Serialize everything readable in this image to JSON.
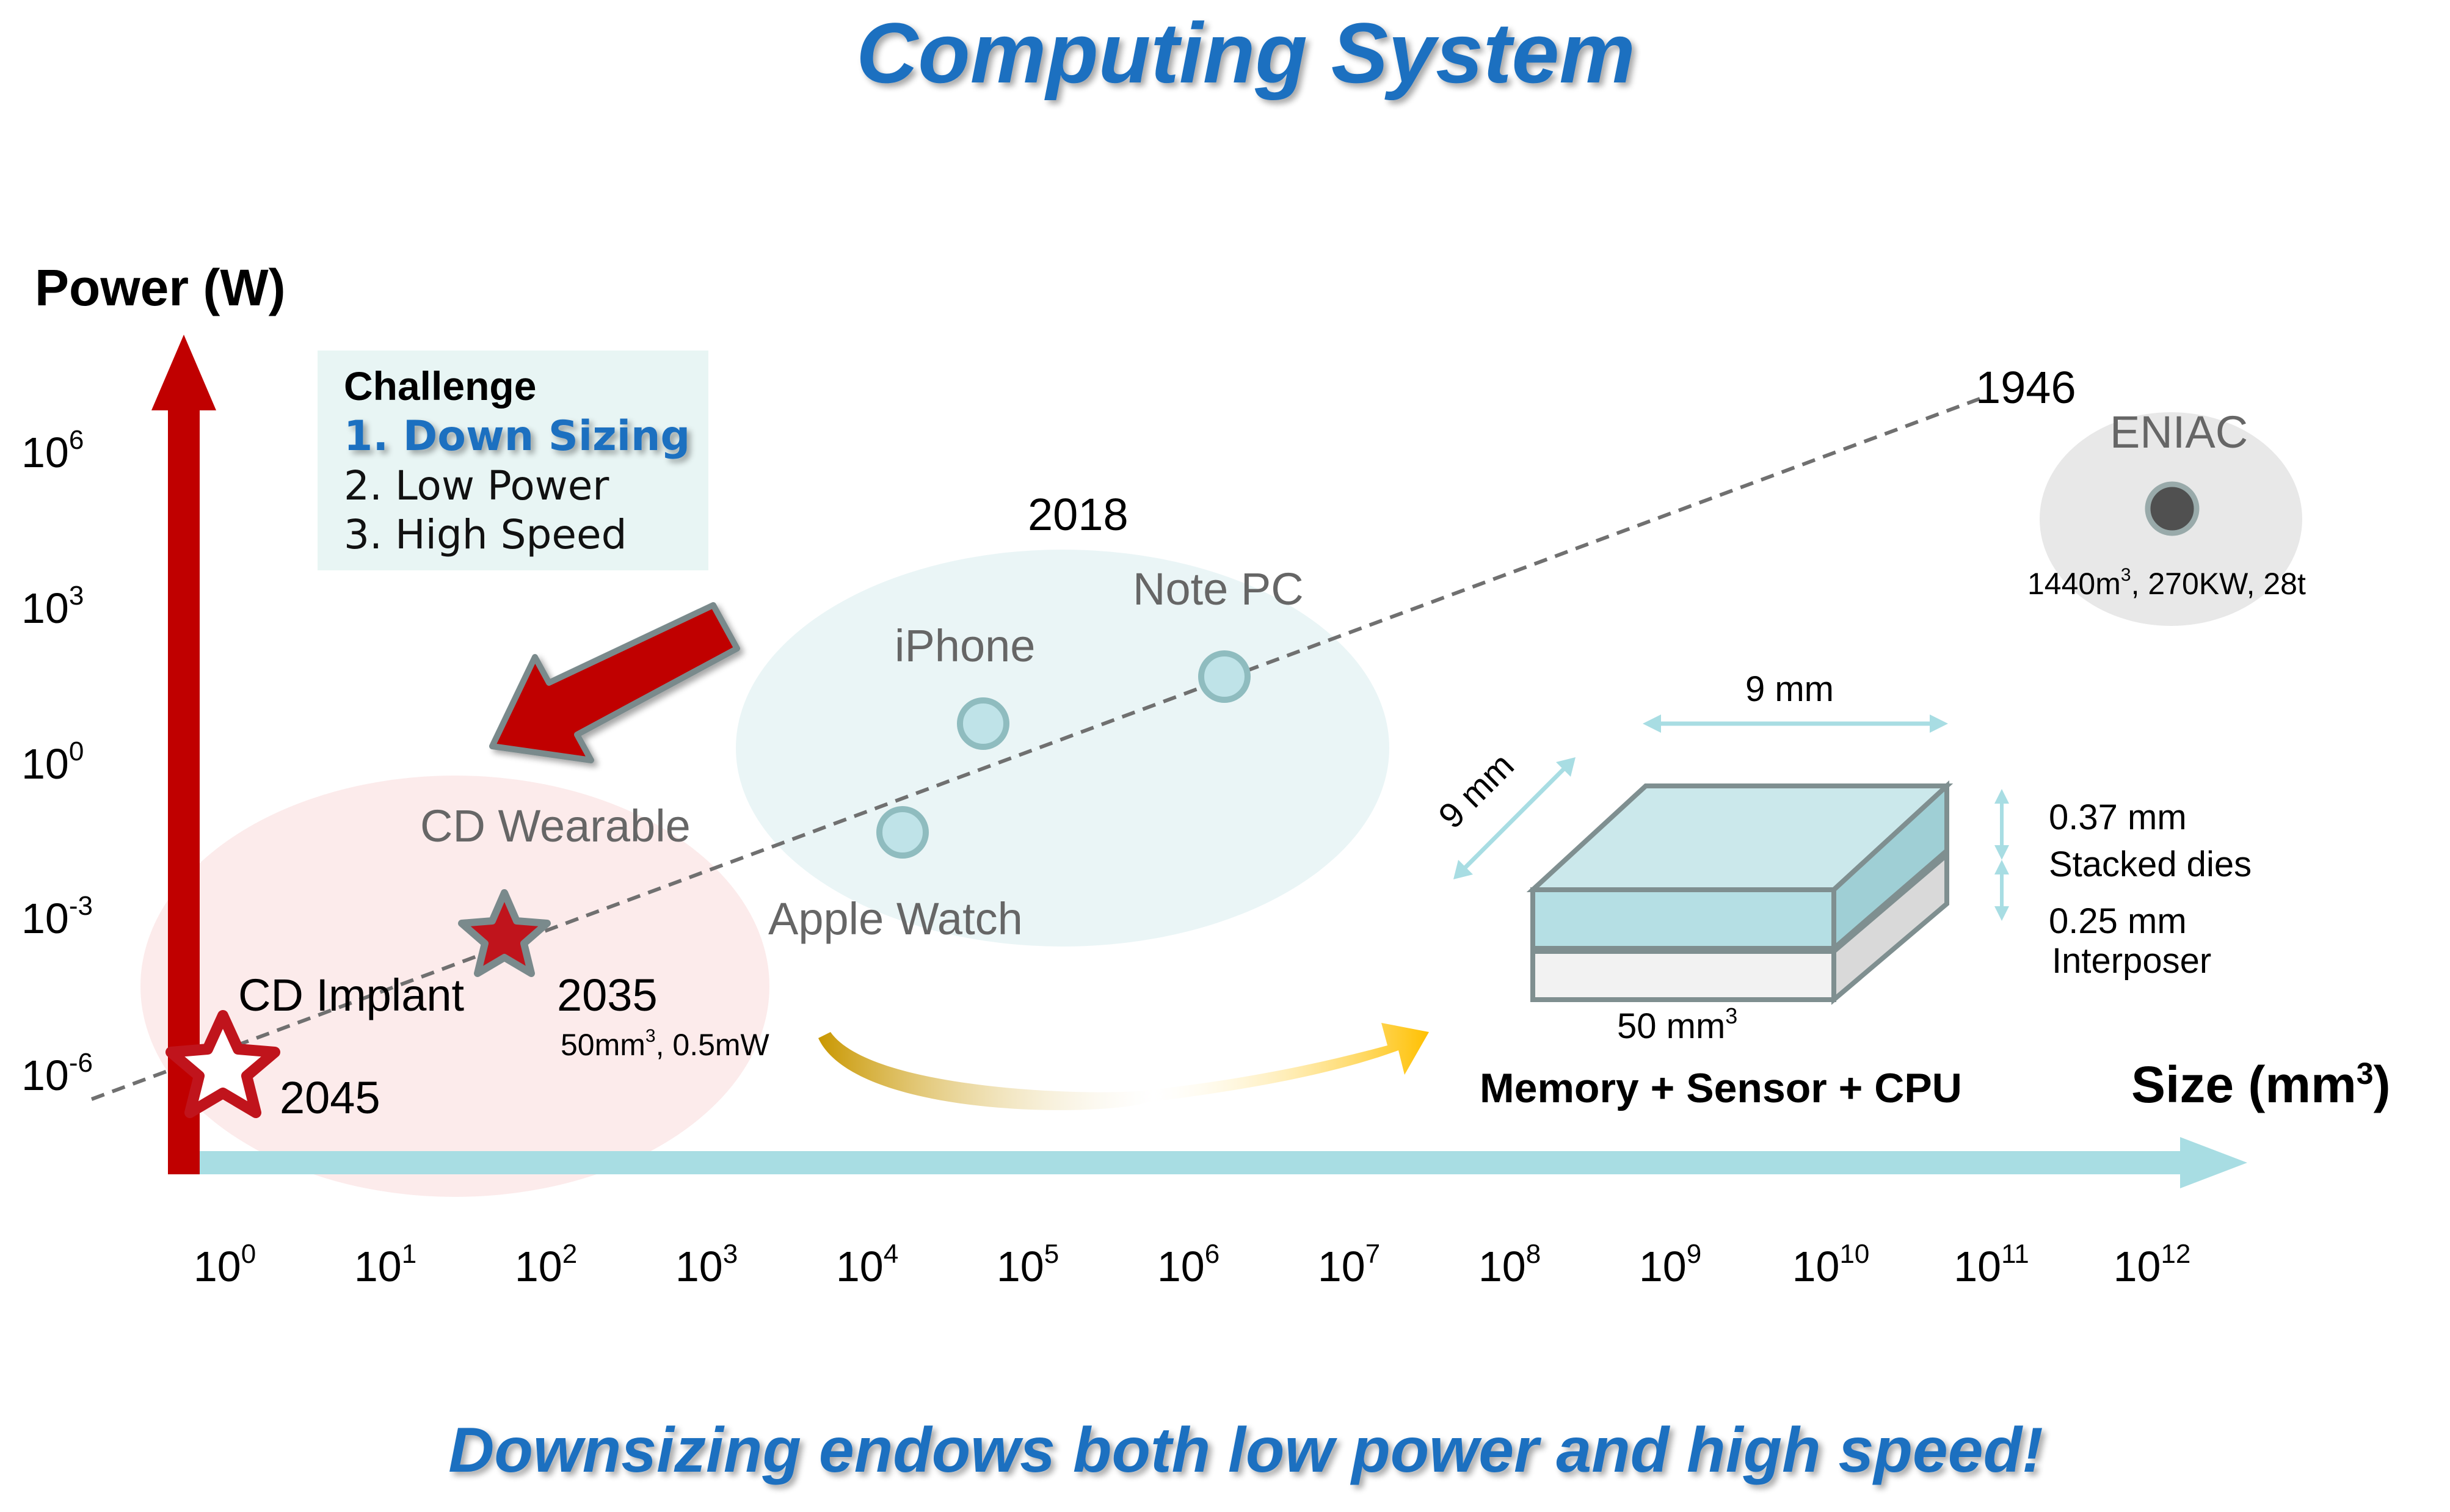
{
  "title": "Computing System",
  "footer": "Downsizing endows both low power and high speed!",
  "y_axis_label": "Power (W)",
  "x_axis_label": {
    "base": "Size (mm",
    "sup": "3",
    "close": ")"
  },
  "y_ticks": [
    {
      "base": "10",
      "exp": "6"
    },
    {
      "base": "10",
      "exp": "3"
    },
    {
      "base": "10",
      "exp": "0"
    },
    {
      "base": "10",
      "exp": "-3"
    },
    {
      "base": "10",
      "exp": "-6"
    }
  ],
  "x_ticks": [
    {
      "base": "10",
      "exp": "0"
    },
    {
      "base": "10",
      "exp": "1"
    },
    {
      "base": "10",
      "exp": "2"
    },
    {
      "base": "10",
      "exp": "3"
    },
    {
      "base": "10",
      "exp": "4"
    },
    {
      "base": "10",
      "exp": "5"
    },
    {
      "base": "10",
      "exp": "6"
    },
    {
      "base": "10",
      "exp": "7"
    },
    {
      "base": "10",
      "exp": "8"
    },
    {
      "base": "10",
      "exp": "9"
    },
    {
      "base": "10",
      "exp": "10"
    },
    {
      "base": "10",
      "exp": "11"
    },
    {
      "base": "10",
      "exp": "12"
    }
  ],
  "challenge": {
    "heading": "Challenge",
    "item1": "1. Down Sizing",
    "item2": "2. Low Power",
    "item3": "3. High Speed"
  },
  "labels": {
    "year_1946": "1946",
    "eniac": "ENIAC",
    "eniac_specs": {
      "a": "1440m",
      "sup": "3",
      "b": ", 270KW, 28t"
    },
    "year_2018": "2018",
    "note_pc": "Note PC",
    "iphone": "iPhone",
    "apple_watch": "Apple Watch",
    "cd_wearable": "CD Wearable",
    "cd_implant": "CD Implant",
    "year_2035": "2035",
    "specs_2035": {
      "a": "50mm",
      "sup": "3",
      "b": ", 0.5mW"
    },
    "year_2045": "2045"
  },
  "chip": {
    "width_label": "9 mm",
    "depth_label": "9 mm",
    "volume": {
      "a": "50 mm",
      "sup": "3"
    },
    "stack_height": "0.37 mm",
    "stack_name": "Stacked dies",
    "interposer_height": "0.25 mm",
    "interposer_name": "Interposer",
    "caption": "Memory + Sensor + CPU"
  },
  "colors": {
    "title_blue": "#1f6fc0",
    "axis_red": "#c00000",
    "axis_cyan": "#a8dde3",
    "bubble_fill": "#bfe3e8",
    "bubble_stroke": "#8fbcbf",
    "eniac_dot": "#505050",
    "trend_line": "#707070",
    "star_red": "#c0141c",
    "curve_gold": "#e6a800"
  }
}
